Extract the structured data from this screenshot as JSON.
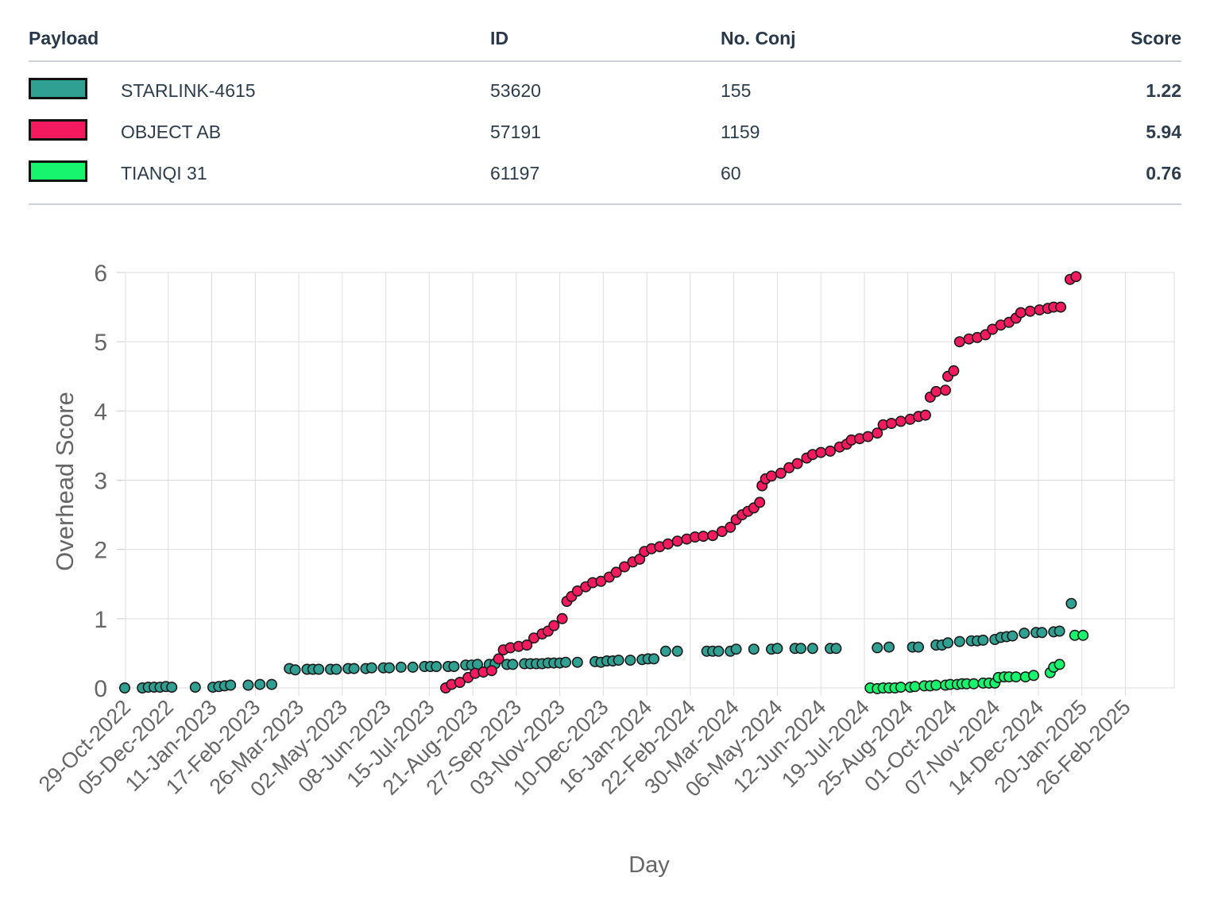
{
  "table": {
    "headers": {
      "payload": "Payload",
      "id": "ID",
      "conj": "No. Conj",
      "score": "Score"
    },
    "rows": [
      {
        "name": "STARLINK-4615",
        "id": "53620",
        "conj": "155",
        "score": "1.22",
        "color": "#2fa092"
      },
      {
        "name": "OBJECT AB",
        "id": "57191",
        "conj": "1159",
        "score": "5.94",
        "color": "#f41a5f"
      },
      {
        "name": "TIANQI 31",
        "id": "61197",
        "conj": "60",
        "score": "0.76",
        "color": "#17f56f"
      }
    ]
  },
  "chart_data": {
    "type": "scatter",
    "title": "",
    "xlabel": "Day",
    "ylabel": "Overhead Score",
    "ylim": [
      0,
      6
    ],
    "yticks": [
      "0",
      "1",
      "2",
      "3",
      "4",
      "5",
      "6"
    ],
    "xticks": [
      "29-Oct-2022",
      "05-Dec-2022",
      "11-Jan-2023",
      "17-Feb-2023",
      "26-Mar-2023",
      "02-May-2023",
      "08-Jun-2023",
      "15-Jul-2023",
      "21-Aug-2023",
      "27-Sep-2023",
      "03-Nov-2023",
      "10-Dec-2023",
      "16-Jan-2024",
      "22-Feb-2024",
      "30-Mar-2024",
      "06-May-2024",
      "12-Jun-2024",
      "19-Jul-2024",
      "25-Aug-2024",
      "01-Oct-2024",
      "07-Nov-2024",
      "14-Dec-2024",
      "20-Jan-2025",
      "26-Feb-2025"
    ],
    "x_unit": "days since 29-Oct-2022",
    "grid": true,
    "series": [
      {
        "name": "STARLINK-4615",
        "color": "#2fa092",
        "points": [
          [
            0,
            0.0
          ],
          [
            15,
            0.0
          ],
          [
            20,
            0.01
          ],
          [
            25,
            0.01
          ],
          [
            30,
            0.01
          ],
          [
            35,
            0.02
          ],
          [
            40,
            0.01
          ],
          [
            60,
            0.01
          ],
          [
            75,
            0.01
          ],
          [
            80,
            0.02
          ],
          [
            85,
            0.03
          ],
          [
            90,
            0.04
          ],
          [
            105,
            0.04
          ],
          [
            115,
            0.05
          ],
          [
            125,
            0.05
          ],
          [
            140,
            0.28
          ],
          [
            145,
            0.26
          ],
          [
            155,
            0.27
          ],
          [
            160,
            0.27
          ],
          [
            165,
            0.27
          ],
          [
            175,
            0.27
          ],
          [
            180,
            0.27
          ],
          [
            190,
            0.28
          ],
          [
            195,
            0.28
          ],
          [
            205,
            0.28
          ],
          [
            210,
            0.29
          ],
          [
            220,
            0.29
          ],
          [
            225,
            0.29
          ],
          [
            235,
            0.3
          ],
          [
            245,
            0.3
          ],
          [
            255,
            0.31
          ],
          [
            260,
            0.31
          ],
          [
            265,
            0.31
          ],
          [
            275,
            0.31
          ],
          [
            280,
            0.31
          ],
          [
            290,
            0.33
          ],
          [
            295,
            0.33
          ],
          [
            300,
            0.34
          ],
          [
            310,
            0.34
          ],
          [
            315,
            0.35
          ],
          [
            325,
            0.34
          ],
          [
            330,
            0.34
          ],
          [
            340,
            0.35
          ],
          [
            345,
            0.35
          ],
          [
            350,
            0.35
          ],
          [
            355,
            0.35
          ],
          [
            360,
            0.36
          ],
          [
            365,
            0.36
          ],
          [
            370,
            0.36
          ],
          [
            375,
            0.37
          ],
          [
            385,
            0.37
          ],
          [
            400,
            0.38
          ],
          [
            405,
            0.37
          ],
          [
            410,
            0.39
          ],
          [
            415,
            0.39
          ],
          [
            420,
            0.4
          ],
          [
            430,
            0.4
          ],
          [
            440,
            0.41
          ],
          [
            445,
            0.42
          ],
          [
            450,
            0.42
          ],
          [
            460,
            0.53
          ],
          [
            470,
            0.53
          ],
          [
            495,
            0.53
          ],
          [
            500,
            0.53
          ],
          [
            505,
            0.53
          ],
          [
            515,
            0.53
          ],
          [
            520,
            0.56
          ],
          [
            535,
            0.56
          ],
          [
            550,
            0.56
          ],
          [
            555,
            0.57
          ],
          [
            570,
            0.57
          ],
          [
            575,
            0.57
          ],
          [
            585,
            0.57
          ],
          [
            600,
            0.57
          ],
          [
            605,
            0.57
          ],
          [
            640,
            0.58
          ],
          [
            650,
            0.59
          ],
          [
            670,
            0.59
          ],
          [
            675,
            0.59
          ],
          [
            690,
            0.62
          ],
          [
            695,
            0.62
          ],
          [
            700,
            0.65
          ],
          [
            710,
            0.67
          ],
          [
            720,
            0.68
          ],
          [
            725,
            0.68
          ],
          [
            730,
            0.69
          ],
          [
            740,
            0.7
          ],
          [
            745,
            0.73
          ],
          [
            750,
            0.74
          ],
          [
            755,
            0.75
          ],
          [
            765,
            0.79
          ],
          [
            775,
            0.8
          ],
          [
            780,
            0.8
          ],
          [
            790,
            0.81
          ],
          [
            795,
            0.82
          ],
          [
            805,
            1.22
          ]
        ]
      },
      {
        "name": "OBJECT AB",
        "color": "#f41a5f",
        "points": [
          [
            273,
            0.0
          ],
          [
            278,
            0.05
          ],
          [
            285,
            0.08
          ],
          [
            292,
            0.15
          ],
          [
            298,
            0.21
          ],
          [
            305,
            0.23
          ],
          [
            312,
            0.25
          ],
          [
            318,
            0.42
          ],
          [
            322,
            0.55
          ],
          [
            328,
            0.58
          ],
          [
            335,
            0.6
          ],
          [
            342,
            0.62
          ],
          [
            348,
            0.72
          ],
          [
            355,
            0.78
          ],
          [
            360,
            0.82
          ],
          [
            365,
            0.9
          ],
          [
            372,
            1.0
          ],
          [
            376,
            1.25
          ],
          [
            380,
            1.32
          ],
          [
            385,
            1.4
          ],
          [
            392,
            1.46
          ],
          [
            398,
            1.52
          ],
          [
            405,
            1.54
          ],
          [
            412,
            1.6
          ],
          [
            418,
            1.67
          ],
          [
            425,
            1.75
          ],
          [
            432,
            1.82
          ],
          [
            438,
            1.86
          ],
          [
            442,
            1.97
          ],
          [
            448,
            2.01
          ],
          [
            455,
            2.04
          ],
          [
            462,
            2.08
          ],
          [
            470,
            2.12
          ],
          [
            478,
            2.15
          ],
          [
            485,
            2.18
          ],
          [
            492,
            2.19
          ],
          [
            500,
            2.2
          ],
          [
            508,
            2.26
          ],
          [
            515,
            2.32
          ],
          [
            520,
            2.43
          ],
          [
            525,
            2.5
          ],
          [
            530,
            2.55
          ],
          [
            535,
            2.6
          ],
          [
            540,
            2.68
          ],
          [
            542,
            2.92
          ],
          [
            545,
            3.02
          ],
          [
            550,
            3.06
          ],
          [
            558,
            3.1
          ],
          [
            565,
            3.18
          ],
          [
            572,
            3.24
          ],
          [
            580,
            3.32
          ],
          [
            585,
            3.37
          ],
          [
            592,
            3.4
          ],
          [
            600,
            3.42
          ],
          [
            608,
            3.48
          ],
          [
            614,
            3.52
          ],
          [
            618,
            3.58
          ],
          [
            625,
            3.6
          ],
          [
            632,
            3.63
          ],
          [
            640,
            3.68
          ],
          [
            645,
            3.8
          ],
          [
            652,
            3.82
          ],
          [
            660,
            3.85
          ],
          [
            668,
            3.88
          ],
          [
            675,
            3.92
          ],
          [
            681,
            3.94
          ],
          [
            685,
            4.2
          ],
          [
            690,
            4.28
          ],
          [
            698,
            4.3
          ],
          [
            700,
            4.5
          ],
          [
            705,
            4.58
          ],
          [
            710,
            5.0
          ],
          [
            718,
            5.04
          ],
          [
            725,
            5.06
          ],
          [
            732,
            5.1
          ],
          [
            738,
            5.18
          ],
          [
            745,
            5.24
          ],
          [
            752,
            5.28
          ],
          [
            758,
            5.34
          ],
          [
            762,
            5.42
          ],
          [
            770,
            5.44
          ],
          [
            778,
            5.46
          ],
          [
            785,
            5.48
          ],
          [
            790,
            5.5
          ],
          [
            796,
            5.5
          ],
          [
            804,
            5.9
          ],
          [
            809,
            5.94
          ]
        ]
      },
      {
        "name": "TIANQI 31",
        "color": "#17f56f",
        "points": [
          [
            634,
            0.0
          ],
          [
            640,
            -0.01
          ],
          [
            645,
            0.0
          ],
          [
            650,
            0.0
          ],
          [
            655,
            0.0
          ],
          [
            660,
            0.01
          ],
          [
            668,
            0.01
          ],
          [
            672,
            0.02
          ],
          [
            680,
            0.03
          ],
          [
            685,
            0.03
          ],
          [
            690,
            0.04
          ],
          [
            698,
            0.04
          ],
          [
            702,
            0.05
          ],
          [
            708,
            0.05
          ],
          [
            712,
            0.06
          ],
          [
            716,
            0.06
          ],
          [
            722,
            0.06
          ],
          [
            730,
            0.07
          ],
          [
            735,
            0.07
          ],
          [
            740,
            0.07
          ],
          [
            743,
            0.15
          ],
          [
            748,
            0.16
          ],
          [
            752,
            0.16
          ],
          [
            758,
            0.16
          ],
          [
            766,
            0.16
          ],
          [
            773,
            0.18
          ],
          [
            787,
            0.22
          ],
          [
            790,
            0.3
          ],
          [
            795,
            0.34
          ],
          [
            808,
            0.76
          ],
          [
            815,
            0.76
          ]
        ]
      }
    ]
  }
}
